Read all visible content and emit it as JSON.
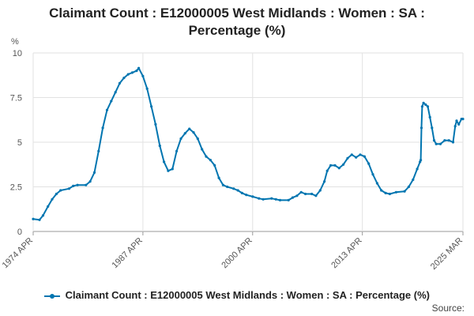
{
  "chart_data": {
    "type": "line",
    "title_line1": "Claimant Count : E12000005 West Midlands : Women : SA :",
    "title_line2": "Percentage (%)",
    "ylabel": "%",
    "ylim": [
      0,
      10
    ],
    "yticks": [
      0,
      2.5,
      5,
      7.5,
      10
    ],
    "ytick_labels": [
      "0",
      "2.5",
      "5",
      "7.5",
      "10"
    ],
    "xlim": [
      "1974-04",
      "2025-03"
    ],
    "xticks": [
      "1974-04",
      "1987-04",
      "2000-04",
      "2013-04",
      "2025-03"
    ],
    "xtick_labels": [
      "1974 APR",
      "1987 APR",
      "2000 APR",
      "2013 APR",
      "2025 MAR"
    ],
    "grid": true,
    "legend_position": "bottom",
    "color": "#0075b0",
    "series": [
      {
        "name": "Claimant Count : E12000005 West Midlands : Women : SA : Percentage (%)",
        "points": [
          [
            "1974-04",
            0.7
          ],
          [
            "1975-01",
            0.65
          ],
          [
            "1975-06",
            0.9
          ],
          [
            "1976-01",
            1.4
          ],
          [
            "1976-07",
            1.8
          ],
          [
            "1977-01",
            2.1
          ],
          [
            "1977-07",
            2.3
          ],
          [
            "1978-07",
            2.4
          ],
          [
            "1979-01",
            2.55
          ],
          [
            "1979-07",
            2.6
          ],
          [
            "1980-07",
            2.6
          ],
          [
            "1981-01",
            2.8
          ],
          [
            "1981-07",
            3.3
          ],
          [
            "1982-01",
            4.5
          ],
          [
            "1982-07",
            5.8
          ],
          [
            "1983-01",
            6.8
          ],
          [
            "1983-07",
            7.3
          ],
          [
            "1984-01",
            7.8
          ],
          [
            "1984-07",
            8.3
          ],
          [
            "1985-01",
            8.6
          ],
          [
            "1985-07",
            8.8
          ],
          [
            "1986-01",
            8.9
          ],
          [
            "1986-07",
            9.0
          ],
          [
            "1986-10",
            9.15
          ],
          [
            "1987-04",
            8.7
          ],
          [
            "1987-10",
            8.0
          ],
          [
            "1988-04",
            7.0
          ],
          [
            "1988-10",
            6.0
          ],
          [
            "1989-04",
            4.8
          ],
          [
            "1989-10",
            3.9
          ],
          [
            "1990-04",
            3.4
          ],
          [
            "1990-10",
            3.5
          ],
          [
            "1991-04",
            4.5
          ],
          [
            "1991-10",
            5.2
          ],
          [
            "1992-04",
            5.5
          ],
          [
            "1992-10",
            5.75
          ],
          [
            "1993-04",
            5.55
          ],
          [
            "1993-10",
            5.2
          ],
          [
            "1994-04",
            4.6
          ],
          [
            "1994-10",
            4.2
          ],
          [
            "1995-04",
            4.0
          ],
          [
            "1995-10",
            3.7
          ],
          [
            "1996-04",
            3.0
          ],
          [
            "1996-10",
            2.6
          ],
          [
            "1997-04",
            2.5
          ],
          [
            "1998-01",
            2.4
          ],
          [
            "1998-07",
            2.3
          ],
          [
            "1999-01",
            2.15
          ],
          [
            "1999-07",
            2.05
          ],
          [
            "2000-04",
            1.95
          ],
          [
            "2001-01",
            1.85
          ],
          [
            "2001-07",
            1.8
          ],
          [
            "2002-07",
            1.85
          ],
          [
            "2003-01",
            1.8
          ],
          [
            "2003-07",
            1.75
          ],
          [
            "2004-07",
            1.75
          ],
          [
            "2005-01",
            1.9
          ],
          [
            "2005-07",
            2.0
          ],
          [
            "2006-01",
            2.2
          ],
          [
            "2006-07",
            2.1
          ],
          [
            "2007-04",
            2.1
          ],
          [
            "2007-10",
            2.0
          ],
          [
            "2008-04",
            2.3
          ],
          [
            "2008-10",
            2.8
          ],
          [
            "2009-02",
            3.4
          ],
          [
            "2009-07",
            3.7
          ],
          [
            "2010-01",
            3.7
          ],
          [
            "2010-07",
            3.55
          ],
          [
            "2011-01",
            3.75
          ],
          [
            "2011-07",
            4.1
          ],
          [
            "2012-01",
            4.3
          ],
          [
            "2012-07",
            4.15
          ],
          [
            "2013-01",
            4.3
          ],
          [
            "2013-07",
            4.2
          ],
          [
            "2014-01",
            3.8
          ],
          [
            "2014-07",
            3.2
          ],
          [
            "2015-01",
            2.7
          ],
          [
            "2015-07",
            2.3
          ],
          [
            "2016-01",
            2.15
          ],
          [
            "2016-07",
            2.1
          ],
          [
            "2017-04",
            2.2
          ],
          [
            "2018-04",
            2.25
          ],
          [
            "2018-10",
            2.5
          ],
          [
            "2019-04",
            2.9
          ],
          [
            "2019-10",
            3.5
          ],
          [
            "2020-02",
            3.9
          ],
          [
            "2020-03",
            4.0
          ],
          [
            "2020-04",
            5.8
          ],
          [
            "2020-05",
            7.0
          ],
          [
            "2020-07",
            7.2
          ],
          [
            "2020-10",
            7.1
          ],
          [
            "2021-01",
            7.0
          ],
          [
            "2021-04",
            6.4
          ],
          [
            "2021-07",
            5.8
          ],
          [
            "2021-10",
            5.1
          ],
          [
            "2022-01",
            4.9
          ],
          [
            "2022-07",
            4.9
          ],
          [
            "2023-01",
            5.1
          ],
          [
            "2023-07",
            5.1
          ],
          [
            "2024-01",
            5.0
          ],
          [
            "2024-04",
            5.9
          ],
          [
            "2024-06",
            6.2
          ],
          [
            "2024-09",
            6.0
          ],
          [
            "2025-01",
            6.3
          ],
          [
            "2025-03",
            6.3
          ]
        ]
      }
    ]
  },
  "legend": {
    "label": "Claimant Count : E12000005 West Midlands : Women : SA : Percentage (%)"
  },
  "source_label": "Source:"
}
